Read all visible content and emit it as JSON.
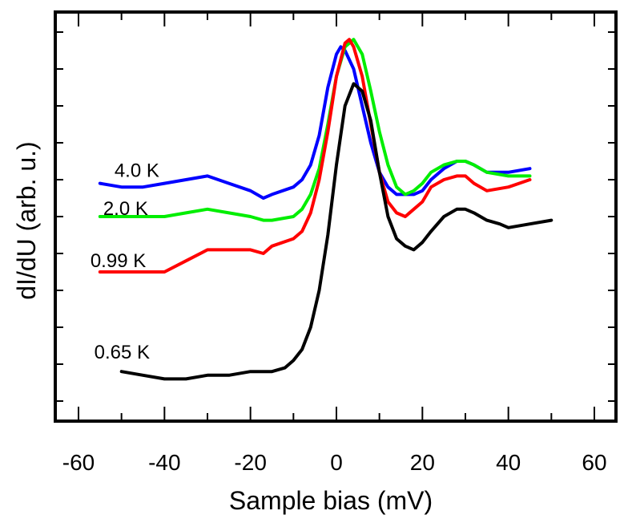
{
  "chart_data": {
    "type": "line",
    "title": "",
    "xlabel": "Sample bias (mV)",
    "ylabel": "dI/dU (arb. u.)",
    "xlim": [
      -60,
      60
    ],
    "ylim": [
      0,
      100
    ],
    "x_ticks": [
      "-60",
      "-40",
      "-20",
      "0",
      "20",
      "40",
      "60"
    ],
    "y_ticks_labeled": false,
    "grid": false,
    "legend": "inline labels at left end of each curve",
    "series": [
      {
        "name": "4.0 K",
        "color": "#0000ff",
        "x": [
          -55,
          -50,
          -45,
          -40,
          -35,
          -30,
          -25,
          -20,
          -17,
          -15,
          -10,
          -8,
          -6,
          -4,
          -2,
          0,
          1,
          2,
          4,
          6,
          8,
          10,
          12,
          14,
          16,
          18,
          20,
          22,
          25,
          28,
          30,
          32,
          35,
          40,
          45
        ],
        "y": [
          59,
          58,
          58,
          59,
          60,
          61,
          59,
          57,
          55,
          56,
          58,
          60,
          64,
          72,
          85,
          94,
          96,
          95,
          90,
          80,
          70,
          62,
          58,
          56,
          56,
          56,
          57,
          60,
          63,
          65,
          65,
          64,
          62,
          62,
          63
        ]
      },
      {
        "name": "2.0 K",
        "color": "#00ee00",
        "x": [
          -55,
          -50,
          -45,
          -40,
          -35,
          -30,
          -25,
          -20,
          -17,
          -15,
          -10,
          -8,
          -6,
          -4,
          -2,
          0,
          2,
          4,
          6,
          8,
          10,
          12,
          14,
          16,
          18,
          20,
          22,
          25,
          28,
          30,
          32,
          35,
          40,
          45
        ],
        "y": [
          50,
          50,
          50,
          50,
          51,
          52,
          51,
          50,
          49,
          49,
          50,
          52,
          56,
          63,
          75,
          88,
          96,
          98,
          94,
          84,
          73,
          64,
          58,
          56,
          57,
          59,
          62,
          64,
          65,
          65,
          64,
          62,
          61,
          61
        ]
      },
      {
        "name": "0.99 K",
        "color": "#ff0000",
        "x": [
          -55,
          -50,
          -45,
          -40,
          -35,
          -30,
          -25,
          -20,
          -17,
          -15,
          -10,
          -8,
          -6,
          -4,
          -2,
          0,
          2,
          3,
          4,
          6,
          8,
          10,
          12,
          14,
          16,
          18,
          20,
          22,
          25,
          28,
          30,
          32,
          35,
          40,
          45
        ],
        "y": [
          35,
          35,
          35,
          35,
          38,
          41,
          41,
          41,
          40,
          42,
          44,
          46,
          51,
          60,
          73,
          88,
          97,
          98,
          96,
          88,
          75,
          62,
          54,
          51,
          50,
          52,
          54,
          58,
          60,
          61,
          61,
          59,
          57,
          58,
          60
        ]
      },
      {
        "name": "0.65 K",
        "color": "#000000",
        "x": [
          -50,
          -45,
          -40,
          -35,
          -30,
          -25,
          -20,
          -15,
          -12,
          -10,
          -8,
          -6,
          -4,
          -2,
          0,
          2,
          4,
          6,
          8,
          10,
          12,
          14,
          16,
          18,
          20,
          22,
          25,
          28,
          30,
          32,
          35,
          38,
          40,
          45,
          50
        ],
        "y": [
          8,
          7,
          6,
          6,
          7,
          7,
          8,
          8,
          9,
          11,
          14,
          20,
          30,
          45,
          64,
          80,
          86,
          84,
          76,
          62,
          50,
          44,
          42,
          41,
          43,
          46,
          50,
          52,
          52,
          51,
          49,
          48,
          47,
          48,
          49
        ]
      }
    ]
  }
}
